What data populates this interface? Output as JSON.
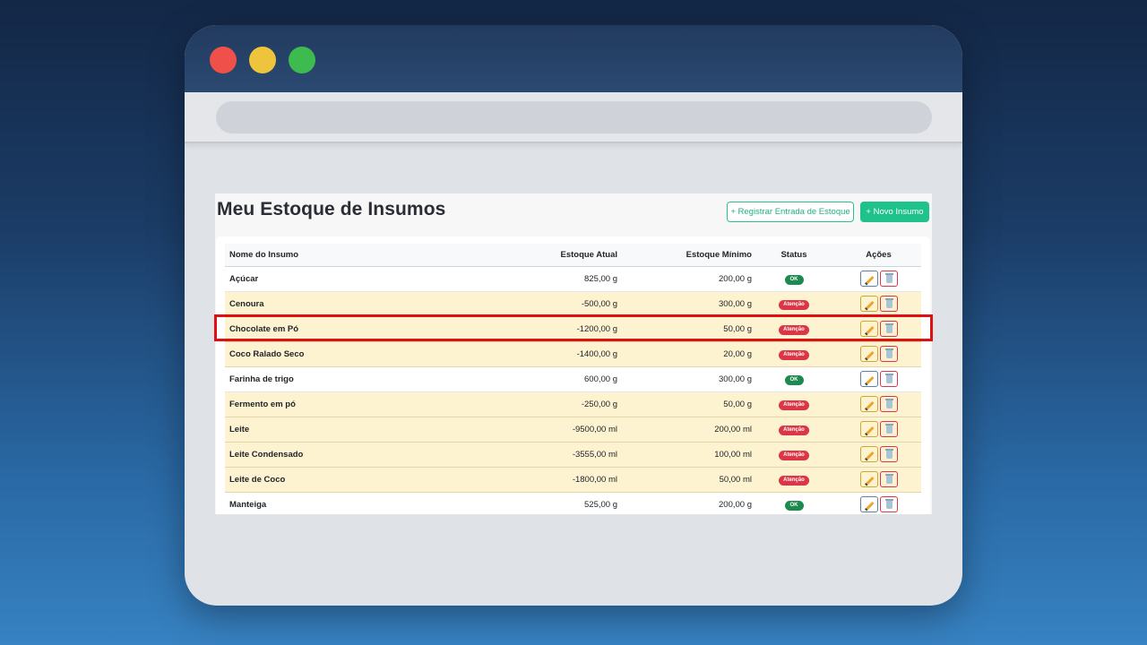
{
  "page": {
    "title": "Meu Estoque de Insumos",
    "register_entry_button": "+ Registrar Entrada de Estoque",
    "new_item_button": "+ Novo Insumo"
  },
  "table": {
    "headers": {
      "name": "Nome do Insumo",
      "current": "Estoque Atual",
      "minimum": "Estoque Mínimo",
      "status": "Status",
      "actions": "Ações"
    },
    "rows": [
      {
        "name": "Açúcar",
        "current": "825,00 g",
        "minimum": "200,00 g",
        "status": "OK",
        "state": "ok"
      },
      {
        "name": "Cenoura",
        "current": "-500,00 g",
        "minimum": "300,00 g",
        "status": "Atenção",
        "state": "warn"
      },
      {
        "name": "Chocolate em Pó",
        "current": "-1200,00 g",
        "minimum": "50,00 g",
        "status": "Atenção",
        "state": "warn"
      },
      {
        "name": "Coco Ralado Seco",
        "current": "-1400,00 g",
        "minimum": "20,00 g",
        "status": "Atenção",
        "state": "warn"
      },
      {
        "name": "Farinha de trigo",
        "current": "600,00 g",
        "minimum": "300,00 g",
        "status": "OK",
        "state": "ok"
      },
      {
        "name": "Fermento em pó",
        "current": "-250,00 g",
        "minimum": "50,00 g",
        "status": "Atenção",
        "state": "warn"
      },
      {
        "name": "Leite",
        "current": "-9500,00 ml",
        "minimum": "200,00 ml",
        "status": "Atenção",
        "state": "warn"
      },
      {
        "name": "Leite Condensado",
        "current": "-3555,00 ml",
        "minimum": "100,00 ml",
        "status": "Atenção",
        "state": "warn"
      },
      {
        "name": "Leite de Coco",
        "current": "-1800,00 ml",
        "minimum": "50,00 ml",
        "status": "Atenção",
        "state": "warn"
      },
      {
        "name": "Manteiga",
        "current": "525,00 g",
        "minimum": "200,00 g",
        "status": "OK",
        "state": "ok"
      }
    ]
  },
  "colors": {
    "ok_badge": "#1e8a4f",
    "warn_badge": "#dc3545",
    "warn_row": "#fdf3d0",
    "accent": "#1fc28a",
    "highlight": "#e01010"
  },
  "icons": {
    "edit": "pencil-icon",
    "delete": "trash-icon"
  }
}
